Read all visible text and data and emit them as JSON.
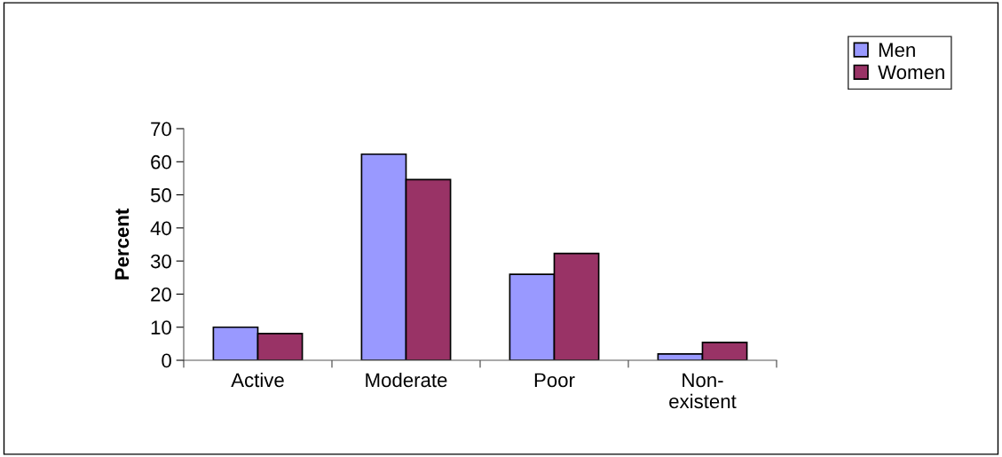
{
  "chart_data": {
    "type": "bar",
    "ylabel": "Percent",
    "categories": [
      "Active",
      "Moderate",
      "Poor",
      "Non-\nexistent"
    ],
    "series": [
      {
        "name": "Men",
        "color": "#9999ff",
        "values": [
          10,
          62.3,
          26,
          1.9
        ]
      },
      {
        "name": "Women",
        "color": "#993366",
        "values": [
          8.1,
          54.6,
          32.3,
          5.4
        ]
      }
    ],
    "ylim": [
      0,
      70
    ],
    "yticks": [
      0,
      10,
      20,
      30,
      40,
      50,
      60,
      70
    ],
    "grid": false,
    "legend": "top right"
  }
}
